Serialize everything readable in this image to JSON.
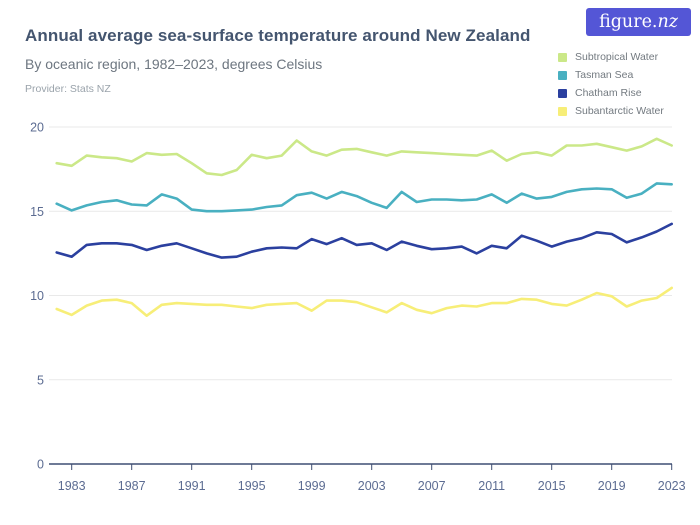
{
  "header": {
    "title": "Annual average sea-surface temperature around New Zealand",
    "subtitle": "By oceanic region, 1982–2023, degrees Celsius",
    "provider": "Provider: Stats NZ",
    "logo_text_1": "figure.",
    "logo_text_2": "nz"
  },
  "colors": {
    "title": "#44556f",
    "subtitle": "#6d7680",
    "provider": "#9aa3ab",
    "logo_background": "#5456d6",
    "logo_text": "#ffffff",
    "gridline": "#e9e9e9",
    "axis_line": "#3f4e73",
    "axis_label": "#5c6c92",
    "legend_text": "#737a80"
  },
  "chart_data": {
    "type": "line",
    "title": "Annual average sea-surface temperature around New Zealand",
    "subtitle": "By oceanic region, 1982–2023, degrees Celsius",
    "xlabel": "",
    "ylabel": "degrees Celsius",
    "ylim": [
      0,
      20
    ],
    "yticks": [
      0,
      5,
      10,
      15,
      20
    ],
    "xticks": [
      1983,
      1987,
      1991,
      1995,
      1999,
      2003,
      2007,
      2011,
      2015,
      2019,
      2023
    ],
    "grid": true,
    "legend_position": "top-right",
    "x": [
      1982,
      1983,
      1984,
      1985,
      1986,
      1987,
      1988,
      1989,
      1990,
      1991,
      1992,
      1993,
      1994,
      1995,
      1996,
      1997,
      1998,
      1999,
      2000,
      2001,
      2002,
      2003,
      2004,
      2005,
      2006,
      2007,
      2008,
      2009,
      2010,
      2011,
      2012,
      2013,
      2014,
      2015,
      2016,
      2017,
      2018,
      2019,
      2020,
      2021,
      2022,
      2023
    ],
    "series": [
      {
        "name": "Subtropical Water",
        "color": "#cbe888",
        "values": [
          17.85,
          17.7,
          18.3,
          18.2,
          18.15,
          17.95,
          18.45,
          18.35,
          18.4,
          17.85,
          17.25,
          17.15,
          17.45,
          18.35,
          18.15,
          18.3,
          19.2,
          18.55,
          18.3,
          18.65,
          18.7,
          18.5,
          18.3,
          18.55,
          18.5,
          18.45,
          18.4,
          18.35,
          18.3,
          18.6,
          18.0,
          18.4,
          18.5,
          18.3,
          18.9,
          18.9,
          19.0,
          18.8,
          18.6,
          18.85,
          19.3,
          18.9
        ]
      },
      {
        "name": "Tasman Sea",
        "color": "#49b0c1",
        "values": [
          15.45,
          15.05,
          15.35,
          15.55,
          15.65,
          15.4,
          15.35,
          16.0,
          15.75,
          15.1,
          15.0,
          15.0,
          15.05,
          15.1,
          15.25,
          15.35,
          15.95,
          16.1,
          15.75,
          16.15,
          15.9,
          15.5,
          15.2,
          16.15,
          15.55,
          15.7,
          15.7,
          15.65,
          15.7,
          16.0,
          15.5,
          16.05,
          15.75,
          15.85,
          16.15,
          16.3,
          16.35,
          16.3,
          15.8,
          16.05,
          16.65,
          16.6
        ]
      },
      {
        "name": "Chatham Rise",
        "color": "#2b409f",
        "values": [
          12.55,
          12.3,
          13.0,
          13.1,
          13.1,
          13.0,
          12.7,
          12.95,
          13.1,
          12.8,
          12.5,
          12.25,
          12.3,
          12.6,
          12.8,
          12.85,
          12.8,
          13.35,
          13.05,
          13.4,
          13.0,
          13.1,
          12.7,
          13.2,
          12.95,
          12.75,
          12.8,
          12.9,
          12.5,
          12.95,
          12.8,
          13.55,
          13.25,
          12.9,
          13.2,
          13.4,
          13.75,
          13.65,
          13.15,
          13.45,
          13.8,
          14.25
        ]
      },
      {
        "name": "Subantarctic Water",
        "color": "#f7ee78",
        "values": [
          9.2,
          8.85,
          9.4,
          9.7,
          9.75,
          9.55,
          8.8,
          9.45,
          9.55,
          9.5,
          9.45,
          9.45,
          9.35,
          9.25,
          9.45,
          9.5,
          9.55,
          9.1,
          9.7,
          9.7,
          9.6,
          9.3,
          9.0,
          9.55,
          9.15,
          8.95,
          9.25,
          9.4,
          9.35,
          9.55,
          9.55,
          9.8,
          9.75,
          9.5,
          9.4,
          9.75,
          10.15,
          9.95,
          9.35,
          9.7,
          9.85,
          10.45
        ]
      }
    ]
  }
}
